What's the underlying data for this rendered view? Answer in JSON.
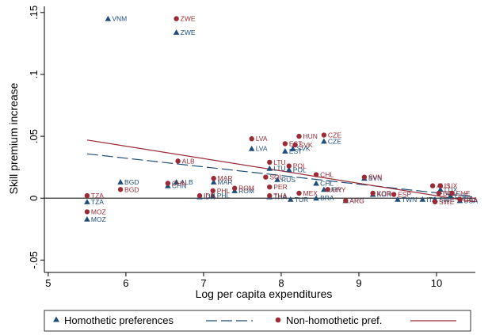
{
  "chart_data": {
    "type": "scatter",
    "xlabel": "Log per capita expenditures",
    "ylabel": "Skill premium increase",
    "xlim": [
      4.95,
      10.5
    ],
    "ylim": [
      -0.06,
      0.155
    ],
    "x_ticks": [
      5,
      6,
      7,
      8,
      9,
      10
    ],
    "y_ticks": [
      -0.05,
      0,
      0.05,
      0.1,
      0.15
    ],
    "y_tick_labels": [
      "-.05",
      "0",
      ".05",
      ".1",
      ".15"
    ],
    "zero_line": true,
    "legend_placement": "bottom",
    "colors": {
      "homothetic": "#1f4e79",
      "nonhomothetic": "#9b2b36",
      "zero_line": "#333333",
      "frame": "#000000"
    },
    "series": [
      {
        "name": "Homothetic preferences",
        "marker": "triangle",
        "fit": {
          "legend": "",
          "style": "dashed",
          "from": [
            5.5,
            0.0358
          ],
          "to": [
            10.5,
            0.0008
          ]
        },
        "points": [
          {
            "label": "VNM",
            "x": 5.77,
            "y": 0.145
          },
          {
            "label": "ZWE",
            "x": 6.65,
            "y": 0.134
          },
          {
            "label": "TZA",
            "x": 5.5,
            "y": -0.003
          },
          {
            "label": "MOZ",
            "x": 5.5,
            "y": -0.017
          },
          {
            "label": "BGD",
            "x": 5.93,
            "y": 0.013
          },
          {
            "label": "CHN",
            "x": 6.54,
            "y": 0.01
          },
          {
            "label": "ALB",
            "x": 6.65,
            "y": 0.013
          },
          {
            "label": "MAR",
            "x": 7.13,
            "y": 0.013
          },
          {
            "label": "LVA",
            "x": 7.62,
            "y": 0.04
          },
          {
            "label": "EST",
            "x": 8.05,
            "y": 0.038
          },
          {
            "label": "SVK",
            "x": 8.15,
            "y": 0.04
          },
          {
            "label": "CZE",
            "x": 8.55,
            "y": 0.046
          },
          {
            "label": "LTU",
            "x": 7.85,
            "y": 0.024
          },
          {
            "label": "POL",
            "x": 8.1,
            "y": 0.023
          },
          {
            "label": "RUS",
            "x": 7.95,
            "y": 0.015
          },
          {
            "label": "CHL",
            "x": 8.45,
            "y": 0.012
          },
          {
            "label": "URY",
            "x": 8.55,
            "y": 0.007
          },
          {
            "label": "SVN",
            "x": 9.07,
            "y": 0.016
          },
          {
            "label": "ROM",
            "x": 7.4,
            "y": 0.006
          },
          {
            "label": "PHL",
            "x": 7.12,
            "y": 0.002
          },
          {
            "label": "IDN",
            "x": 6.95,
            "y": 0.001
          },
          {
            "label": "THA",
            "x": 7.85,
            "y": 0.001
          },
          {
            "label": "TUR",
            "x": 8.12,
            "y": -0.001
          },
          {
            "label": "BRA",
            "x": 8.45,
            "y": 0.0
          },
          {
            "label": "KOR",
            "x": 9.18,
            "y": 0.003
          },
          {
            "label": "ARG",
            "x": 8.83,
            "y": -0.002
          },
          {
            "label": "TWN",
            "x": 9.5,
            "y": -0.001
          },
          {
            "label": "ITA",
            "x": 9.82,
            "y": -0.001
          },
          {
            "label": "SWE",
            "x": 9.98,
            "y": -0.001
          },
          {
            "label": "LUX",
            "x": 10.05,
            "y": 0.007
          },
          {
            "label": "CHE",
            "x": 10.18,
            "y": 0.002
          },
          {
            "label": "USA",
            "x": 10.3,
            "y": -0.002
          }
        ]
      },
      {
        "name": "Non-homothetic pref.",
        "marker": "circle",
        "fit": {
          "legend": "",
          "style": "solid",
          "from": [
            5.5,
            0.047
          ],
          "to": [
            10.5,
            -0.003
          ]
        },
        "points": [
          {
            "label": "ZWE",
            "x": 6.65,
            "y": 0.145
          },
          {
            "label": "TZA",
            "x": 5.5,
            "y": 0.002
          },
          {
            "label": "MOZ",
            "x": 5.5,
            "y": -0.011
          },
          {
            "label": "BGD",
            "x": 5.93,
            "y": 0.007
          },
          {
            "label": "CHN",
            "x": 6.54,
            "y": 0.012
          },
          {
            "label": "ALB",
            "x": 6.67,
            "y": 0.03
          },
          {
            "label": "MAR",
            "x": 7.13,
            "y": 0.016
          },
          {
            "label": "PHL",
            "x": 7.12,
            "y": 0.006
          },
          {
            "label": "IDN",
            "x": 6.95,
            "y": 0.002
          },
          {
            "label": "ROM",
            "x": 7.4,
            "y": 0.008
          },
          {
            "label": "LVA",
            "x": 7.62,
            "y": 0.048
          },
          {
            "label": "EST",
            "x": 8.05,
            "y": 0.044
          },
          {
            "label": "HUN",
            "x": 8.23,
            "y": 0.05
          },
          {
            "label": "CZE",
            "x": 8.55,
            "y": 0.051
          },
          {
            "label": "SVK",
            "x": 8.18,
            "y": 0.043
          },
          {
            "label": "LTU",
            "x": 7.85,
            "y": 0.029
          },
          {
            "label": "POL",
            "x": 8.1,
            "y": 0.026
          },
          {
            "label": "SOL",
            "x": 7.8,
            "y": 0.017
          },
          {
            "label": "CHL",
            "x": 8.45,
            "y": 0.019
          },
          {
            "label": "SVN",
            "x": 9.07,
            "y": 0.017
          },
          {
            "label": "PER",
            "x": 7.85,
            "y": 0.009
          },
          {
            "label": "MEX",
            "x": 8.23,
            "y": 0.004
          },
          {
            "label": "URY",
            "x": 8.6,
            "y": 0.007
          },
          {
            "label": "KOR",
            "x": 9.18,
            "y": 0.004
          },
          {
            "label": "ESP",
            "x": 9.45,
            "y": 0.003
          },
          {
            "label": "ARG",
            "x": 8.83,
            "y": -0.002
          },
          {
            "label": "THA",
            "x": 7.85,
            "y": 0.002
          },
          {
            "label": "AUS",
            "x": 9.95,
            "y": 0.01
          },
          {
            "label": "LUX",
            "x": 10.05,
            "y": 0.01
          },
          {
            "label": "BEL",
            "x": 10.03,
            "y": 0.004
          },
          {
            "label": "CHE",
            "x": 10.2,
            "y": 0.004
          },
          {
            "label": "SWE",
            "x": 9.98,
            "y": -0.003
          },
          {
            "label": "USA",
            "x": 10.3,
            "y": -0.001
          }
        ]
      }
    ]
  }
}
